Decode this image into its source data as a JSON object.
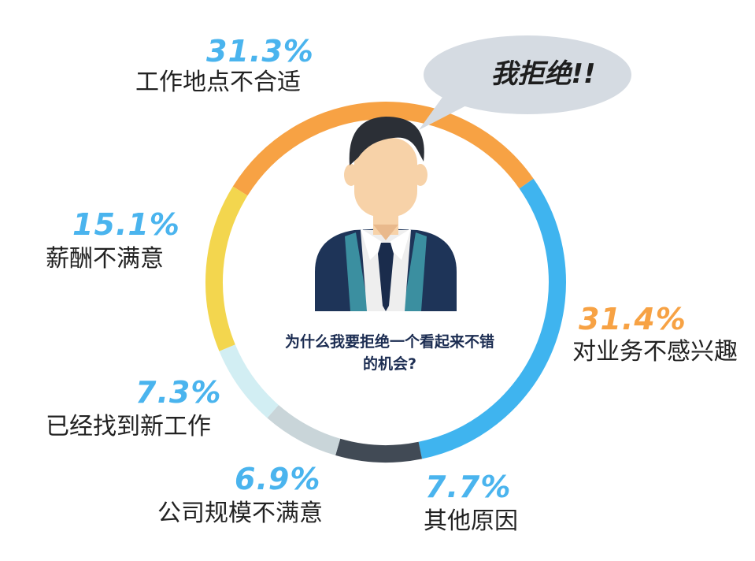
{
  "chart_data": {
    "type": "pie",
    "variant": "donut",
    "slices": [
      {
        "label": "工作地点不合适",
        "value": 31.3,
        "display": "31.3%",
        "color": "#f7a244",
        "pct_color": "#4ab4ee"
      },
      {
        "label": "对业务不感兴趣",
        "value": 31.4,
        "display": "31.4%",
        "color": "#3fb4ef",
        "pct_color": "#f7a244"
      },
      {
        "label": "其他原因",
        "value": 7.7,
        "display": "7.7%",
        "color": "#414a55",
        "pct_color": "#4ab4ee"
      },
      {
        "label": "公司规模不满意",
        "value": 6.9,
        "display": "6.9%",
        "color": "#c9d5d9",
        "pct_color": "#4ab4ee"
      },
      {
        "label": "已经找到新工作",
        "value": 7.3,
        "display": "7.3%",
        "color": "#d2eef3",
        "pct_color": "#4ab4ee"
      },
      {
        "label": "薪酬不满意",
        "value": 15.1,
        "display": "15.1%",
        "color": "#f3d64e",
        "pct_color": "#4ab4ee"
      }
    ]
  },
  "center_text": "为什么我要拒绝一个看起来不错的机会?",
  "speech_bubble": "我拒绝!!",
  "colors": {
    "suit": "#1e3458",
    "skin": "#f7d2a8",
    "hair": "#2b2f36",
    "bubble": "#d5dbe2",
    "tie": "#1a2c4c",
    "shirt": "#eeeeee"
  }
}
